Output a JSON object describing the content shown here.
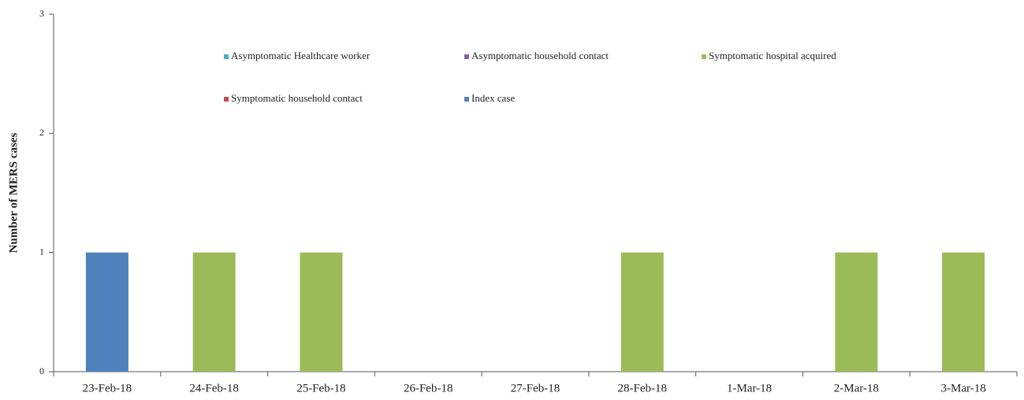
{
  "chart_data": {
    "type": "stacked_bar",
    "y_label": "Number of MERS cases",
    "categories": [
      "23-Feb-18",
      "24-Feb-18",
      "25-Feb-18",
      "26-Feb-18",
      "27-Feb-18",
      "28-Feb-18",
      "1-Mar-18",
      "2-Mar-18",
      "3-Mar-18"
    ],
    "series": [
      {
        "name": "Asymptomatic Healthcare worker",
        "color": "#4bacc6",
        "values": [
          0,
          0,
          0,
          0,
          0,
          0,
          0,
          0,
          0
        ]
      },
      {
        "name": "Asymptomatic household contact",
        "color": "#8064a2",
        "values": [
          0,
          0,
          0,
          0,
          0,
          0,
          0,
          0,
          0
        ]
      },
      {
        "name": "Symptomatic hospital acquired",
        "color": "#9bbb59",
        "values": [
          0,
          1,
          1,
          0,
          0,
          1,
          0,
          1,
          1
        ]
      },
      {
        "name": "Symptomatic household contact",
        "color": "#c0504d",
        "values": [
          0,
          0,
          0,
          0,
          0,
          0,
          0,
          0,
          0
        ]
      },
      {
        "name": "Index case",
        "color": "#4f81bd",
        "values": [
          1,
          0,
          0,
          0,
          0,
          0,
          0,
          0,
          0
        ]
      }
    ],
    "ylim": [
      0,
      3
    ],
    "yticks": [
      0,
      1,
      2,
      3
    ],
    "legend": "top"
  }
}
